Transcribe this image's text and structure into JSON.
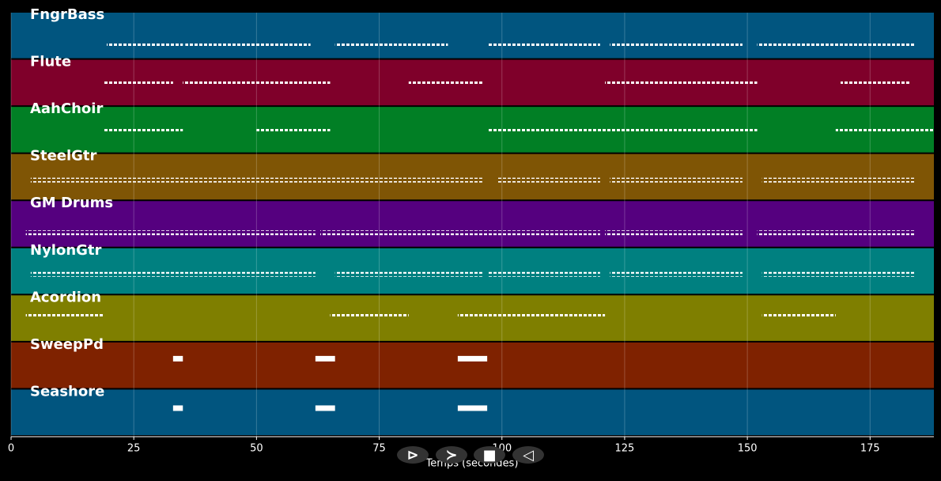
{
  "chart_data": {
    "type": "pianoroll",
    "xlabel": "Temps (secondes)",
    "xlim": [
      0,
      188
    ],
    "xticks": [
      0,
      25,
      50,
      75,
      100,
      125,
      150,
      175
    ],
    "grid": true,
    "tracks": [
      {
        "name": "FngrBass",
        "color": "#01557f",
        "regions": [
          [
            19.5,
            35
          ],
          [
            35.5,
            61
          ],
          [
            66,
            89
          ],
          [
            97,
            120
          ],
          [
            122,
            149
          ],
          [
            152,
            184
          ]
        ]
      },
      {
        "name": "Flute",
        "color": "#7f002a",
        "regions": [
          [
            19,
            33
          ],
          [
            35,
            65
          ],
          [
            81,
            96
          ],
          [
            121,
            152
          ],
          [
            169,
            183
          ]
        ]
      },
      {
        "name": "AahChoir",
        "color": "#017f25",
        "regions": [
          [
            19,
            35
          ],
          [
            50,
            65
          ],
          [
            97,
            152
          ],
          [
            168,
            188
          ]
        ]
      },
      {
        "name": "SteelGtr",
        "color": "#7f5505",
        "regions": [
          [
            4,
            96
          ],
          [
            99,
            120
          ],
          [
            122,
            149
          ],
          [
            153,
            184
          ]
        ]
      },
      {
        "name": "GM Drums",
        "color": "#55007f",
        "regions": [
          [
            3,
            62
          ],
          [
            63,
            96
          ],
          [
            96,
            120
          ],
          [
            121,
            149
          ],
          [
            152,
            184
          ]
        ]
      },
      {
        "name": "NylonGtr",
        "color": "#008080",
        "regions": [
          [
            4,
            62
          ],
          [
            66,
            96
          ],
          [
            97,
            120
          ],
          [
            122,
            149
          ],
          [
            153,
            184
          ]
        ]
      },
      {
        "name": "Acordion",
        "color": "#7f7f00",
        "regions": [
          [
            3,
            19
          ],
          [
            65,
            81
          ],
          [
            91,
            121
          ],
          [
            153,
            168
          ]
        ]
      },
      {
        "name": "SweepPd",
        "color": "#7f2200",
        "regions": [
          [
            33,
            35
          ],
          [
            62,
            66
          ],
          [
            91,
            97
          ]
        ]
      },
      {
        "name": "Seashore",
        "color": "#01557f",
        "regions": [
          [
            33,
            35
          ],
          [
            62,
            66
          ],
          [
            91,
            97
          ]
        ]
      }
    ],
    "controls": [
      "⊳",
      "≻",
      "■",
      "◁"
    ]
  }
}
